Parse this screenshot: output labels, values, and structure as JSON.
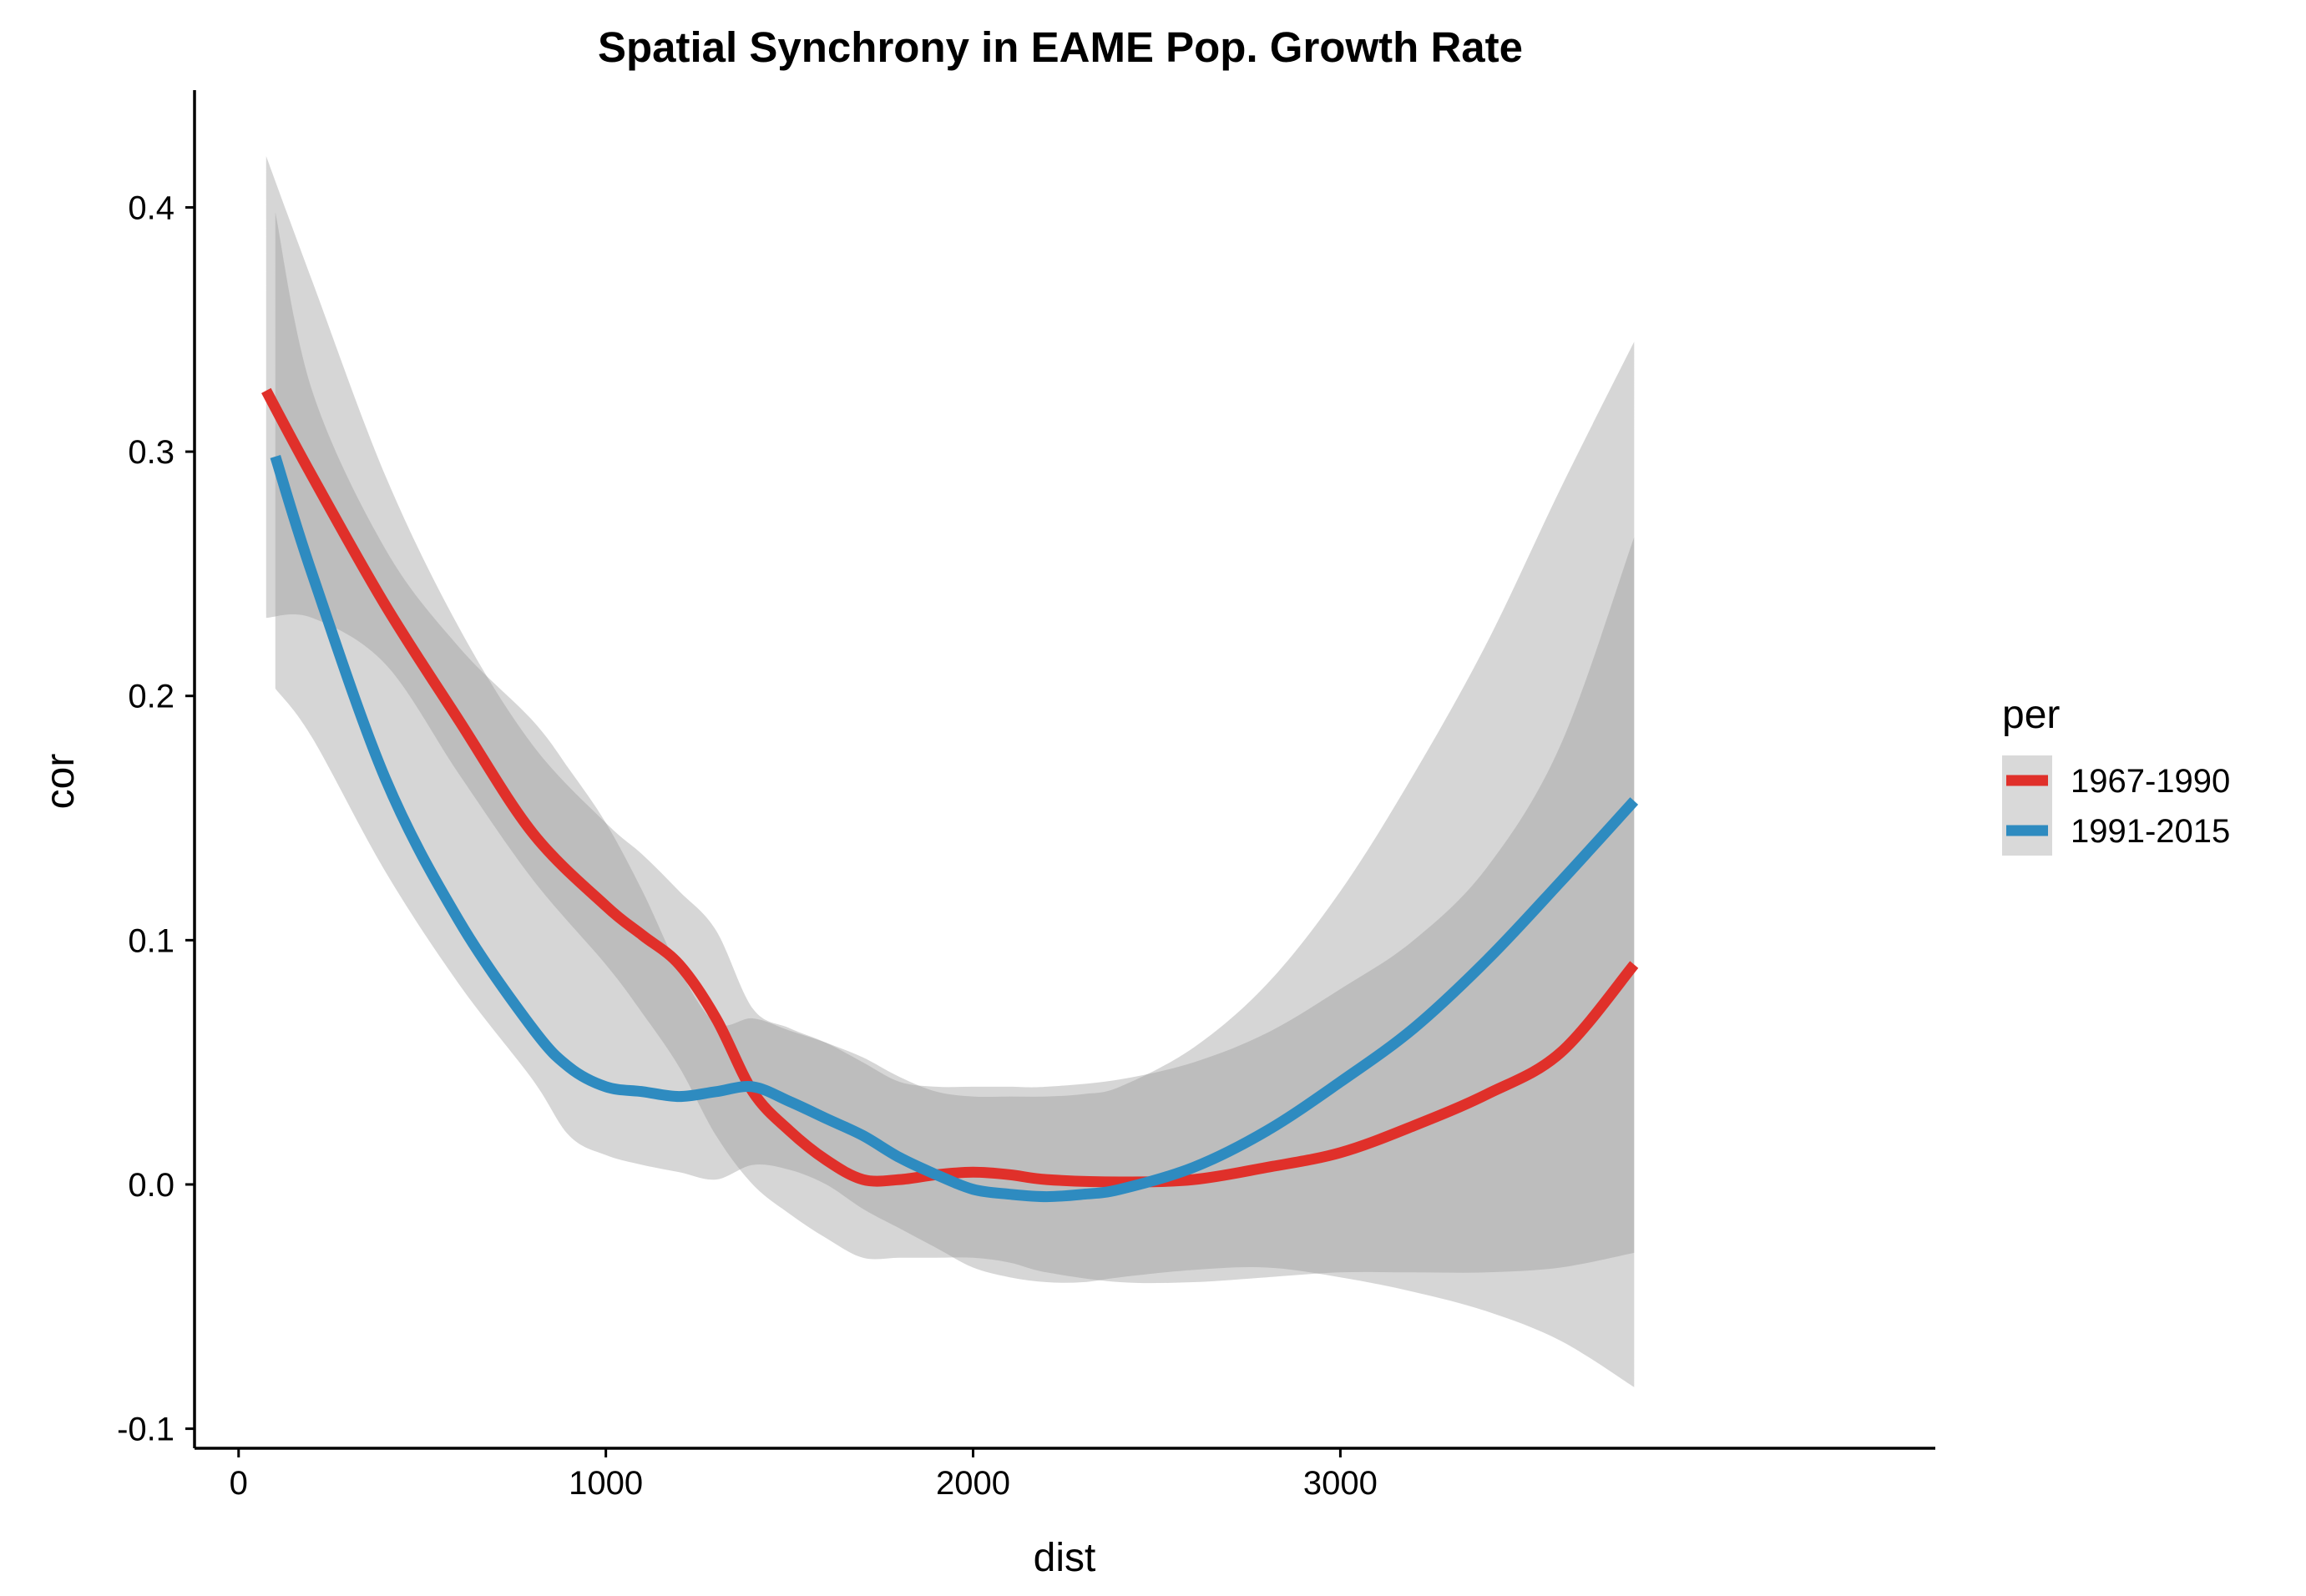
{
  "chart_data": {
    "type": "line",
    "title": "Spatial Synchrony in EAME Pop. Growth Rate",
    "xlabel": "dist",
    "ylabel": "cor",
    "xlim": [
      -120,
      4620
    ],
    "ylim": [
      -0.108,
      0.448
    ],
    "x_ticks": [
      0,
      1000,
      2000,
      3000
    ],
    "x_tick_labels": [
      "0",
      "1000",
      "2000",
      "3000"
    ],
    "y_ticks": [
      -0.1,
      0.0,
      0.1,
      0.2,
      0.3,
      0.4
    ],
    "y_tick_labels": [
      "-0.1",
      "0.0",
      "0.1",
      "0.2",
      "0.3",
      "0.4"
    ],
    "grid": false,
    "legend": {
      "title": "per",
      "position": "right"
    },
    "series": [
      {
        "name": "1967-1990",
        "color": "#E0302A",
        "x": [
          75,
          200,
          400,
          600,
          800,
          1000,
          1100,
          1200,
          1300,
          1400,
          1500,
          1600,
          1700,
          1800,
          1900,
          2000,
          2100,
          2200,
          2400,
          2600,
          2800,
          3000,
          3200,
          3400,
          3600,
          3800
        ],
        "y": [
          0.325,
          0.29,
          0.237,
          0.19,
          0.144,
          0.114,
          0.102,
          0.09,
          0.068,
          0.038,
          0.022,
          0.01,
          0.002,
          0.002,
          0.004,
          0.005,
          0.004,
          0.002,
          0.001,
          0.002,
          0.007,
          0.013,
          0.024,
          0.037,
          0.054,
          0.09
        ],
        "ci_lower": [
          0.232,
          0.232,
          0.213,
          0.168,
          0.125,
          0.09,
          0.07,
          0.048,
          0.02,
          0.0,
          -0.012,
          -0.022,
          -0.03,
          -0.03,
          -0.03,
          -0.03,
          -0.032,
          -0.036,
          -0.04,
          -0.04,
          -0.038,
          -0.036,
          -0.036,
          -0.036,
          -0.034,
          -0.028
        ],
        "ci_upper": [
          0.421,
          0.37,
          0.29,
          0.228,
          0.18,
          0.148,
          0.135,
          0.12,
          0.104,
          0.072,
          0.064,
          0.058,
          0.05,
          0.042,
          0.04,
          0.04,
          0.04,
          0.04,
          0.043,
          0.05,
          0.062,
          0.08,
          0.1,
          0.13,
          0.18,
          0.265
        ]
      },
      {
        "name": "1991-2015",
        "color": "#2E8BC0",
        "x": [
          100,
          200,
          400,
          600,
          800,
          900,
          1000,
          1100,
          1200,
          1300,
          1400,
          1500,
          1600,
          1700,
          1800,
          1900,
          2000,
          2100,
          2200,
          2300,
          2400,
          2600,
          2800,
          3000,
          3200,
          3400,
          3600,
          3800
        ],
        "y": [
          0.298,
          0.25,
          0.166,
          0.108,
          0.064,
          0.048,
          0.04,
          0.038,
          0.036,
          0.038,
          0.04,
          0.034,
          0.027,
          0.02,
          0.011,
          0.004,
          -0.002,
          -0.004,
          -0.005,
          -0.004,
          -0.002,
          0.007,
          0.022,
          0.042,
          0.064,
          0.092,
          0.124,
          0.157
        ],
        "ci_lower": [
          0.203,
          0.183,
          0.128,
          0.082,
          0.043,
          0.02,
          0.012,
          0.008,
          0.005,
          0.002,
          0.008,
          0.006,
          0.0,
          -0.01,
          -0.018,
          -0.026,
          -0.034,
          -0.038,
          -0.04,
          -0.04,
          -0.038,
          -0.035,
          -0.034,
          -0.038,
          -0.044,
          -0.052,
          -0.064,
          -0.083
        ],
        "ci_upper": [
          0.398,
          0.325,
          0.26,
          0.22,
          0.19,
          0.17,
          0.148,
          0.12,
          0.088,
          0.066,
          0.068,
          0.063,
          0.058,
          0.052,
          0.044,
          0.038,
          0.036,
          0.036,
          0.036,
          0.037,
          0.04,
          0.056,
          0.082,
          0.12,
          0.168,
          0.222,
          0.285,
          0.345
        ]
      }
    ]
  }
}
